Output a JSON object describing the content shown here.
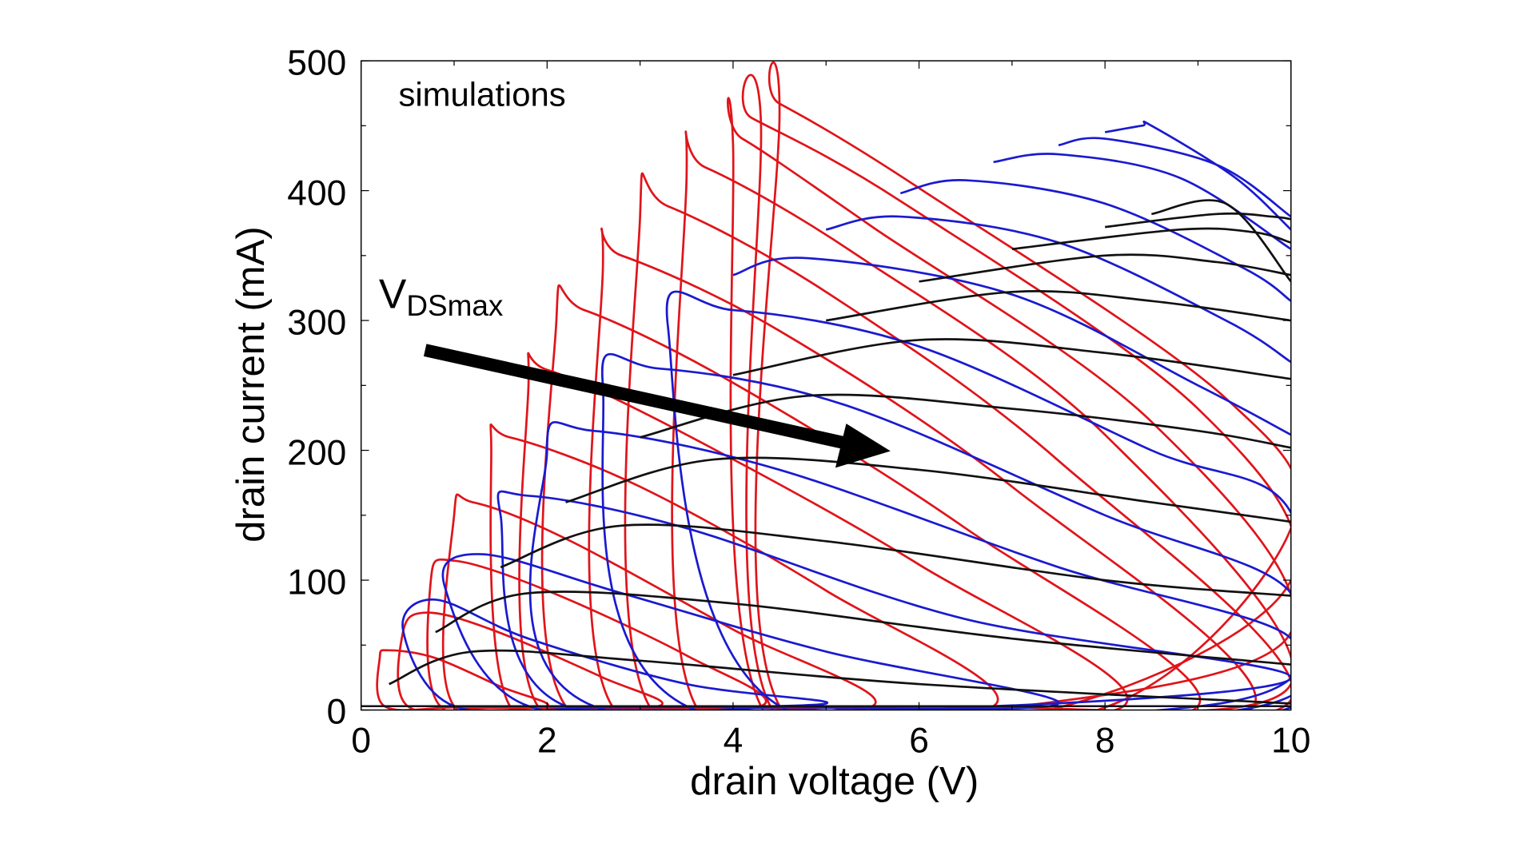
{
  "chart_data": {
    "type": "line",
    "title": "",
    "annotation": "simulations",
    "arrow_label": {
      "main": "V",
      "subscript": "DSmax"
    },
    "xlabel": "drain voltage (V)",
    "ylabel": "drain current (mA)",
    "xlim": [
      0,
      10
    ],
    "ylim": [
      0,
      500
    ],
    "xticks": [
      "0",
      "2",
      "4",
      "6",
      "8",
      "10"
    ],
    "yticks": [
      "0",
      "100",
      "200",
      "300",
      "400",
      "500"
    ],
    "grid": false,
    "legend": "none",
    "colors": {
      "red": "#e0141a",
      "blue": "#1a1ad0",
      "black": "#111111"
    },
    "series": [
      {
        "color": "red",
        "loops": [
          [
            [
              0.25,
              3
            ],
            [
              0.2,
              40
            ],
            [
              0.3,
              46
            ],
            [
              0.8,
              40
            ],
            [
              1.5,
              18
            ],
            [
              2.0,
              3
            ],
            [
              1.0,
              2
            ]
          ],
          [
            [
              0.5,
              3
            ],
            [
              0.45,
              60
            ],
            [
              0.7,
              75
            ],
            [
              1.4,
              62
            ],
            [
              2.6,
              25
            ],
            [
              3.2,
              3
            ],
            [
              1.5,
              2
            ]
          ],
          [
            [
              0.85,
              3
            ],
            [
              0.75,
              100
            ],
            [
              1.0,
              115
            ],
            [
              2.0,
              92
            ],
            [
              3.5,
              42
            ],
            [
              4.3,
              3
            ],
            [
              2.0,
              2
            ]
          ],
          [
            [
              1.0,
              3
            ],
            [
              1.0,
              150
            ],
            [
              1.2,
              160
            ],
            [
              2.2,
              132
            ],
            [
              4.0,
              62
            ],
            [
              5.5,
              3
            ],
            [
              2.5,
              2
            ]
          ],
          [
            [
              1.6,
              3
            ],
            [
              1.4,
              200
            ],
            [
              1.6,
              210
            ],
            [
              3.0,
              172
            ],
            [
              5.0,
              92
            ],
            [
              6.8,
              3
            ],
            [
              3.0,
              2
            ]
          ],
          [
            [
              1.9,
              3
            ],
            [
              1.8,
              250
            ],
            [
              2.0,
              262
            ],
            [
              3.5,
              212
            ],
            [
              6.0,
              112
            ],
            [
              8.2,
              3
            ],
            [
              4.0,
              2
            ]
          ],
          [
            [
              2.2,
              3
            ],
            [
              2.1,
              300
            ],
            [
              2.4,
              308
            ],
            [
              4.0,
              252
            ],
            [
              6.5,
              140
            ],
            [
              9.0,
              3
            ],
            [
              5.0,
              2
            ]
          ],
          [
            [
              2.7,
              3
            ],
            [
              2.6,
              340
            ],
            [
              2.8,
              350
            ],
            [
              4.5,
              292
            ],
            [
              7.0,
              172
            ],
            [
              9.6,
              3
            ],
            [
              5.5,
              2
            ]
          ],
          [
            [
              3.1,
              3
            ],
            [
              3.0,
              380
            ],
            [
              3.3,
              388
            ],
            [
              5.0,
              322
            ],
            [
              7.5,
              192
            ],
            [
              10,
              8
            ],
            [
              6.0,
              2
            ]
          ],
          [
            [
              3.6,
              3
            ],
            [
              3.5,
              410
            ],
            [
              3.7,
              418
            ],
            [
              5.3,
              352
            ],
            [
              8.0,
              212
            ],
            [
              10,
              20
            ],
            [
              6.5,
              2
            ]
          ],
          [
            [
              4.3,
              3
            ],
            [
              4.0,
              435
            ],
            [
              4.1,
              440
            ],
            [
              5.5,
              372
            ],
            [
              8.5,
              222
            ],
            [
              10,
              60
            ],
            [
              7.0,
              2
            ]
          ],
          [
            [
              4.4,
              3
            ],
            [
              4.3,
              452
            ],
            [
              4.2,
              456
            ],
            [
              5.8,
              392
            ],
            [
              9.0,
              232
            ],
            [
              10,
              100
            ],
            [
              7.5,
              2
            ]
          ],
          [
            [
              4.5,
              3
            ],
            [
              4.5,
              460
            ],
            [
              4.5,
              467
            ],
            [
              6.0,
              402
            ],
            [
              9.3,
              240
            ],
            [
              10,
              140
            ],
            [
              8.0,
              2
            ]
          ]
        ]
      },
      {
        "color": "blue",
        "loops": [
          [
            [
              0.45,
              62
            ],
            [
              0.8,
              85
            ],
            [
              1.8,
              55
            ],
            [
              3.5,
              20
            ],
            [
              5.0,
              5
            ],
            [
              2.6,
              2
            ],
            [
              1.0,
              3
            ]
          ],
          [
            [
              0.9,
              95
            ],
            [
              1.3,
              120
            ],
            [
              2.8,
              90
            ],
            [
              5.0,
              45
            ],
            [
              7.5,
              5
            ],
            [
              4.5,
              2
            ],
            [
              1.8,
              3
            ]
          ],
          [
            [
              1.5,
              150
            ],
            [
              1.8,
              165
            ],
            [
              3.5,
              140
            ],
            [
              6.5,
              70
            ],
            [
              10,
              25
            ],
            [
              6.5,
              2
            ],
            [
              2.2,
              3
            ]
          ],
          [
            [
              2.0,
              200
            ],
            [
              2.5,
              215
            ],
            [
              4.5,
              185
            ],
            [
              7.5,
              110
            ],
            [
              10,
              55
            ],
            [
              8.9,
              2
            ],
            [
              2.5,
              3
            ]
          ],
          [
            [
              2.6,
              250
            ],
            [
              3.2,
              263
            ],
            [
              5.2,
              235
            ],
            [
              8.0,
              150
            ],
            [
              10,
              90
            ],
            [
              9.6,
              2
            ],
            [
              3.5,
              3
            ]
          ],
          [
            [
              3.3,
              295
            ],
            [
              4.0,
              308
            ],
            [
              6.0,
              280
            ],
            [
              8.5,
              200
            ],
            [
              10,
              152
            ],
            [
              10,
              2
            ],
            [
              4.5,
              3
            ]
          ],
          [
            [
              4.0,
              335
            ],
            [
              4.8,
              348
            ],
            [
              7.0,
              320
            ],
            [
              9.0,
              250
            ],
            [
              10,
              212
            ]
          ],
          [
            [
              5.0,
              370
            ],
            [
              5.8,
              380
            ],
            [
              7.5,
              360
            ],
            [
              9.3,
              300
            ],
            [
              10,
              268
            ]
          ],
          [
            [
              5.8,
              398
            ],
            [
              6.5,
              408
            ],
            [
              8.0,
              390
            ],
            [
              9.5,
              340
            ],
            [
              10,
              315
            ]
          ],
          [
            [
              6.8,
              422
            ],
            [
              7.5,
              428
            ],
            [
              8.8,
              410
            ],
            [
              10,
              355
            ]
          ],
          [
            [
              7.5,
              435
            ],
            [
              8.0,
              440
            ],
            [
              9.2,
              420
            ],
            [
              10,
              380
            ]
          ],
          [
            [
              8.0,
              445
            ],
            [
              8.4,
              450
            ],
            [
              8.5,
              450
            ],
            [
              9.4,
              410
            ],
            [
              10,
              370
            ]
          ]
        ]
      },
      {
        "color": "black",
        "loops": [
          [
            [
              0.3,
              20
            ],
            [
              1.2,
              45
            ],
            [
              3.0,
              38
            ],
            [
              6.0,
              20
            ],
            [
              10,
              5
            ]
          ],
          [
            [
              0.8,
              60
            ],
            [
              1.8,
              90
            ],
            [
              4.0,
              82
            ],
            [
              7.0,
              55
            ],
            [
              10,
              35
            ]
          ],
          [
            [
              1.5,
              110
            ],
            [
              2.8,
              142
            ],
            [
              5.0,
              130
            ],
            [
              8.0,
              100
            ],
            [
              10,
              88
            ]
          ],
          [
            [
              2.2,
              160
            ],
            [
              3.8,
              193
            ],
            [
              6.0,
              185
            ],
            [
              8.5,
              160
            ],
            [
              10,
              145
            ]
          ],
          [
            [
              3.0,
              210
            ],
            [
              4.8,
              242
            ],
            [
              7.0,
              232
            ],
            [
              9.0,
              215
            ],
            [
              10,
              202
            ]
          ],
          [
            [
              4.0,
              258
            ],
            [
              6.0,
              285
            ],
            [
              8.0,
              275
            ],
            [
              10,
              255
            ]
          ],
          [
            [
              5.0,
              300
            ],
            [
              7.0,
              322
            ],
            [
              8.5,
              315
            ],
            [
              10,
              300
            ]
          ],
          [
            [
              6.0,
              330
            ],
            [
              8.0,
              350
            ],
            [
              9.2,
              345
            ],
            [
              10,
              335
            ]
          ],
          [
            [
              7.0,
              355
            ],
            [
              8.8,
              370
            ],
            [
              9.6,
              368
            ],
            [
              10,
              360
            ]
          ],
          [
            [
              8.0,
              372
            ],
            [
              9.2,
              382
            ],
            [
              9.8,
              380
            ],
            [
              10,
              378
            ]
          ],
          [
            [
              8.5,
              382
            ],
            [
              9.3,
              390
            ],
            [
              10,
              330
            ]
          ]
        ]
      }
    ]
  }
}
